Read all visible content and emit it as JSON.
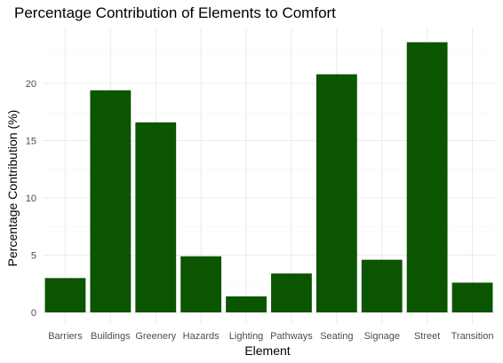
{
  "chart_data": {
    "type": "bar",
    "title": "Percentage Contribution of Elements to Comfort",
    "xlabel": "Element",
    "ylabel": "Percentage Contribution (%)",
    "categories": [
      "Barriers",
      "Buildings",
      "Greenery",
      "Hazards",
      "Lighting",
      "Pathways",
      "Seating",
      "Signage",
      "Street",
      "Transition"
    ],
    "values": [
      3.0,
      19.4,
      16.6,
      4.9,
      1.4,
      3.4,
      20.8,
      4.6,
      23.6,
      2.6
    ],
    "ylim": [
      0,
      25
    ],
    "yticks": [
      0,
      5,
      10,
      15,
      20
    ],
    "bar_color": "#0b5400",
    "grid": true,
    "legend": "none"
  }
}
